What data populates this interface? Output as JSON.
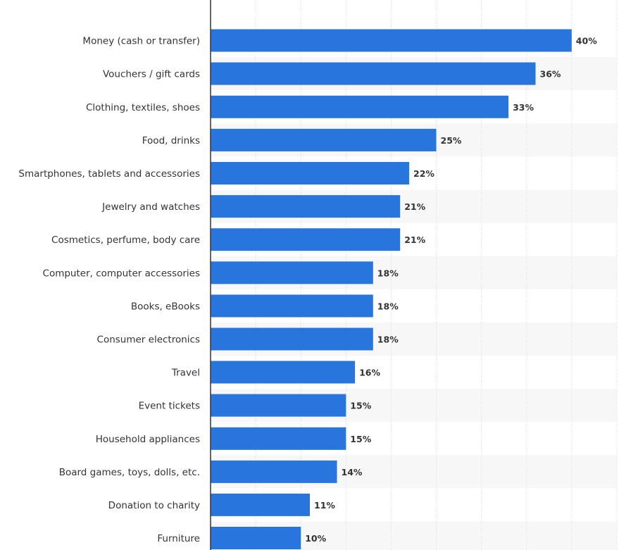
{
  "chart_data": {
    "type": "bar",
    "orientation": "horizontal",
    "categories": [
      "Money (cash or transfer)",
      "Vouchers / gift cards",
      "Clothing, textiles, shoes",
      "Food, drinks",
      "Smartphones, tablets and accessories",
      "Jewelry and watches",
      "Cosmetics, perfume, body care",
      "Computer, computer accessories",
      "Books, eBooks",
      "Consumer electronics",
      "Travel",
      "Event tickets",
      "Household appliances",
      "Board games, toys, dolls, etc.",
      "Donation to charity",
      "Furniture"
    ],
    "values": [
      40,
      36,
      33,
      25,
      22,
      21,
      21,
      18,
      18,
      18,
      16,
      15,
      15,
      14,
      11,
      10
    ],
    "value_labels": [
      "40%",
      "36%",
      "33%",
      "25%",
      "22%",
      "21%",
      "21%",
      "18%",
      "18%",
      "18%",
      "16%",
      "15%",
      "15%",
      "14%",
      "11%",
      "10%"
    ],
    "title": "",
    "xlabel": "",
    "ylabel": "",
    "xlim": [
      0,
      45
    ],
    "grid": true,
    "legend": "none",
    "colors": {
      "bar": "#2876dd",
      "band": "#f7f7f7",
      "grid": "#d7d7d7",
      "axis": "#333333",
      "text": "#333333"
    }
  }
}
